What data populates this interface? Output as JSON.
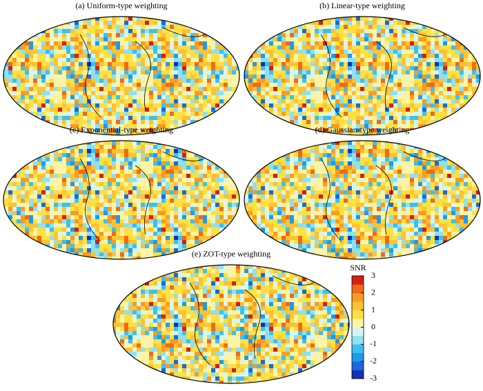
{
  "panels": [
    {
      "title": "(a) Uniform-type weighting"
    },
    {
      "title": "(b) Linear-type weighting"
    },
    {
      "title": "(c) Exponential-type weighting"
    },
    {
      "title": "(d) Gaussian-type weighting"
    },
    {
      "title": "(e) ZOT-type weighting"
    }
  ],
  "colorbar": {
    "label": "SNR",
    "lim": [
      -3,
      3
    ],
    "ticks": [
      3,
      2,
      1,
      0,
      -1,
      -2,
      -3
    ],
    "colors": [
      "#1530b8",
      "#1a68dc",
      "#1f9ae8",
      "#3cc0ee",
      "#8fe0f0",
      "#d4f6f2",
      "#fbf4a8",
      "#ffe040",
      "#ffc232",
      "#fb9a22",
      "#ef6a18",
      "#d42010"
    ]
  }
}
